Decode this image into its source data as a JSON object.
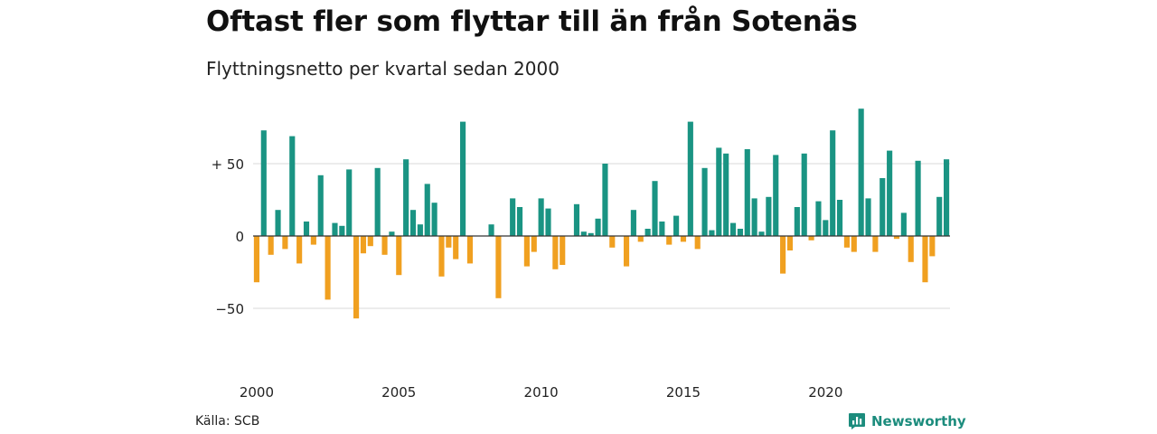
{
  "title": "Oftast fler som flyttar till än från Sotenäs",
  "subtitle": "Flyttningsnetto per kvartal sedan 2000",
  "source": "Källa: SCB",
  "brand": "Newsworthy",
  "colors": {
    "positive": "#1a9483",
    "negative": "#f0a020",
    "grid": "#d9d9d9",
    "zero_line": "#333333"
  },
  "chart_data": {
    "type": "bar",
    "start_year": 2000,
    "periods_per_year": 4,
    "x_ticks": [
      "2000",
      "2005",
      "2010",
      "2015",
      "2020"
    ],
    "y_ticks": [
      {
        "value": 50,
        "label": "+ 50"
      },
      {
        "value": 0,
        "label": "0"
      },
      {
        "value": -50,
        "label": "−50"
      }
    ],
    "ylim": [
      -85,
      90
    ],
    "grid": true,
    "values": [
      -32,
      73,
      -13,
      18,
      -9,
      69,
      -19,
      10,
      -6,
      42,
      -44,
      9,
      7,
      46,
      -57,
      -12,
      -7,
      47,
      -13,
      3,
      -27,
      53,
      18,
      8,
      36,
      23,
      -28,
      -8,
      -16,
      79,
      -19,
      0,
      0,
      8,
      -43,
      0,
      26,
      20,
      -21,
      -11,
      26,
      19,
      -23,
      -20,
      0,
      22,
      3,
      2,
      12,
      50,
      -8,
      0,
      -21,
      18,
      -4,
      5,
      38,
      10,
      -6,
      14,
      -4,
      79,
      -9,
      47,
      4,
      61,
      57,
      9,
      5,
      60,
      26,
      3,
      27,
      56,
      -26,
      -10,
      20,
      57,
      -3,
      24,
      11,
      73,
      25,
      -8,
      -11,
      88,
      26,
      -11,
      40,
      59,
      -2,
      16,
      -18,
      52,
      -32,
      -14,
      27,
      53
    ]
  }
}
